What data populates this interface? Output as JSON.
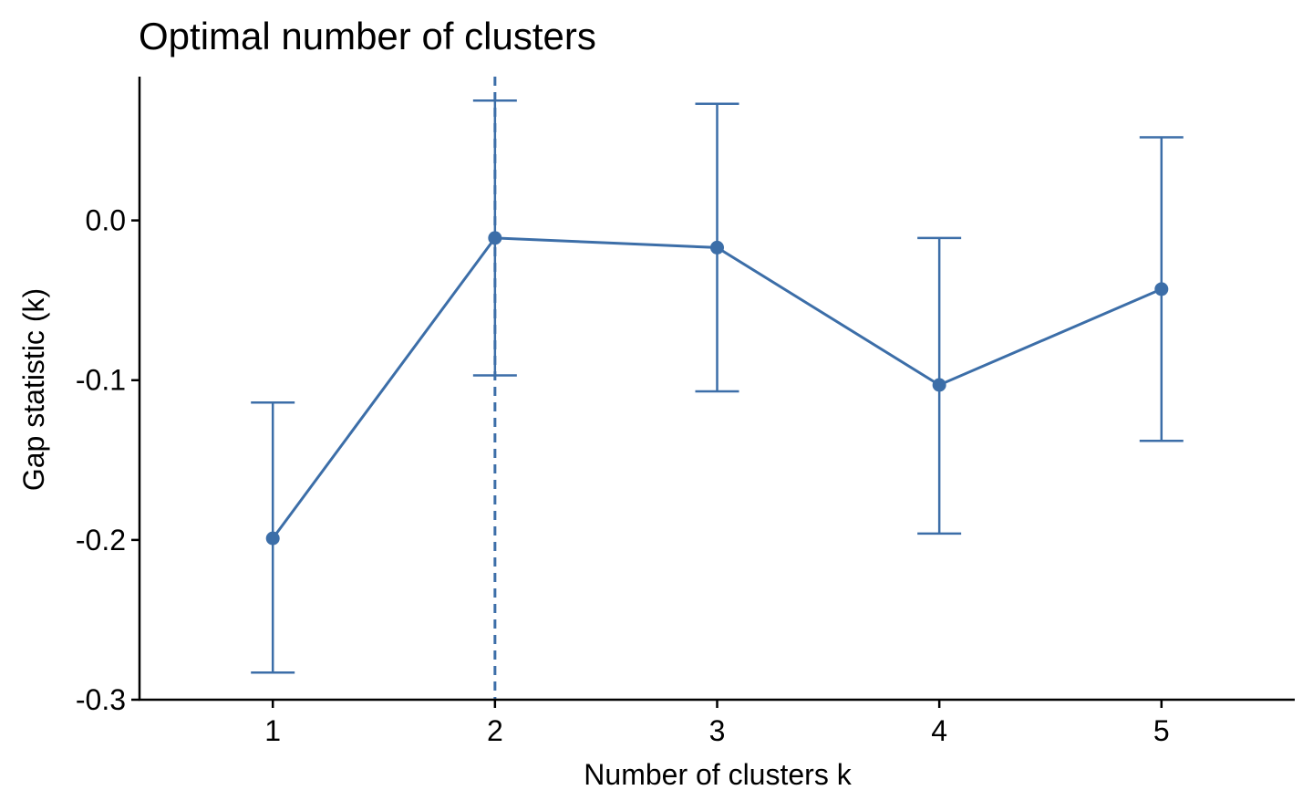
{
  "chart_data": {
    "type": "line",
    "title": "Optimal number of clusters",
    "xlabel": "Number of clusters k",
    "ylabel": "Gap statistic (k)",
    "x": [
      1,
      2,
      3,
      4,
      5
    ],
    "x_tick_labels": [
      "1",
      "2",
      "3",
      "4",
      "5"
    ],
    "xlim": [
      0.4,
      5.6
    ],
    "ylim": [
      -0.3,
      0.09
    ],
    "y_ticks": [
      -0.3,
      -0.2,
      -0.1,
      0.0
    ],
    "y_tick_labels": [
      "-0.3",
      "-0.2",
      "-0.1",
      "0.0"
    ],
    "series": [
      {
        "values": [
          -0.199,
          -0.011,
          -0.017,
          -0.103,
          -0.043
        ],
        "error_lower": [
          -0.283,
          -0.097,
          -0.107,
          -0.196,
          -0.138
        ],
        "error_upper": [
          -0.114,
          0.075,
          0.073,
          -0.011,
          0.052
        ],
        "color": "#3C6EA8"
      }
    ],
    "optimal_k": 2,
    "optimal_line_style": "dashed",
    "grid": false,
    "legend": "none"
  }
}
